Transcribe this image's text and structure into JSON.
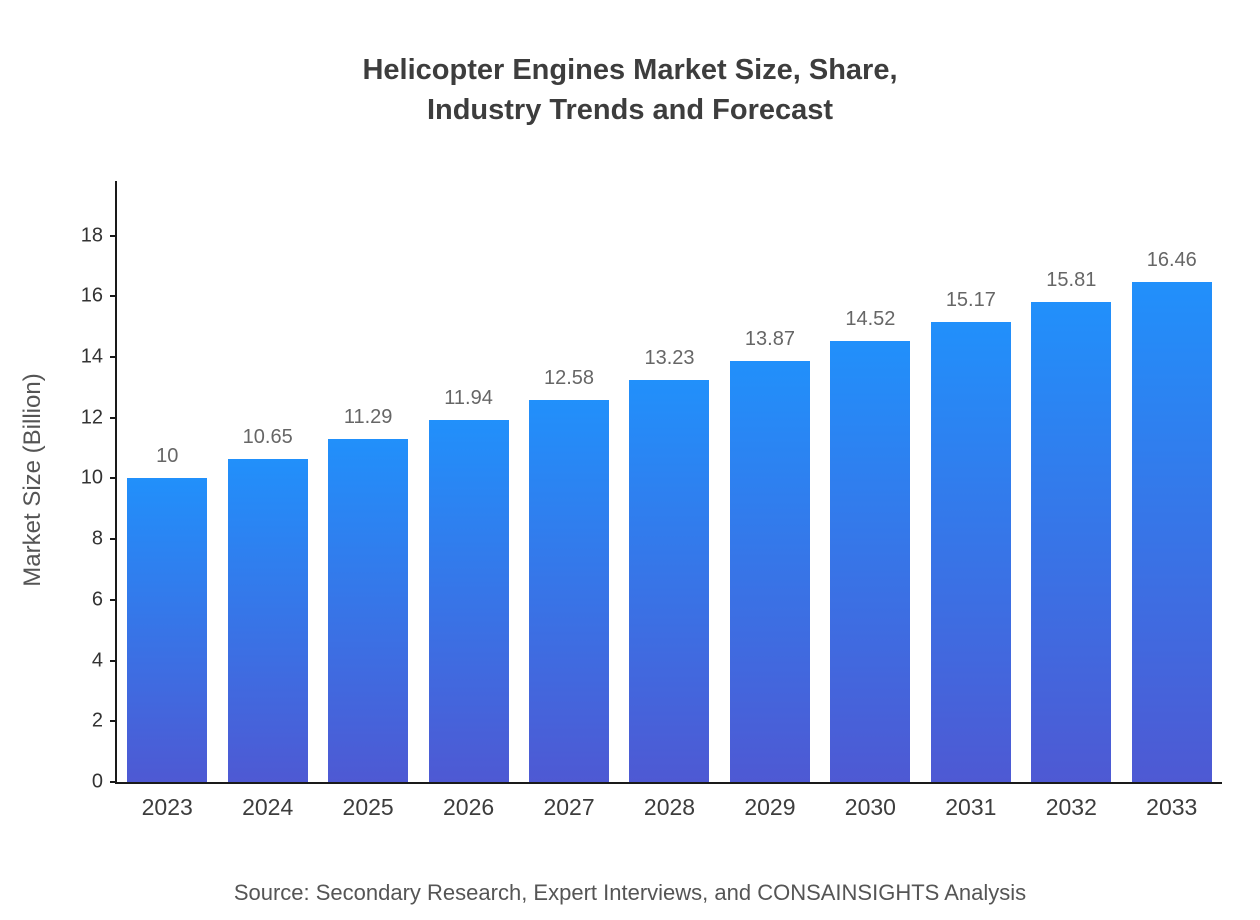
{
  "chart_data": {
    "type": "bar",
    "title": "Helicopter Engines Market Size, Share, Industry Trends and Forecast",
    "title_lines": [
      "Helicopter Engines Market Size, Share,",
      "Industry Trends and Forecast"
    ],
    "categories": [
      "2023",
      "2024",
      "2025",
      "2026",
      "2027",
      "2028",
      "2029",
      "2030",
      "2031",
      "2032",
      "2033"
    ],
    "values": [
      10,
      10.65,
      11.29,
      11.94,
      12.58,
      13.23,
      13.87,
      14.52,
      15.17,
      15.81,
      16.46
    ],
    "value_labels": [
      "10",
      "10.65",
      "11.29",
      "11.94",
      "12.58",
      "13.23",
      "13.87",
      "14.52",
      "15.17",
      "15.81",
      "16.46"
    ],
    "xlabel": "",
    "ylabel": "Market Size (Billion)",
    "ylim": [
      0,
      19.8
    ],
    "yticks": [
      0,
      2,
      4,
      6,
      8,
      10,
      12,
      14,
      16,
      18
    ],
    "grid": false,
    "legend": "none",
    "bar_color_top": "#2190fb",
    "bar_color_bottom": "#4e59d3",
    "source": "Source: Secondary Research, Expert Interviews, and CONSAINSIGHTS Analysis"
  }
}
